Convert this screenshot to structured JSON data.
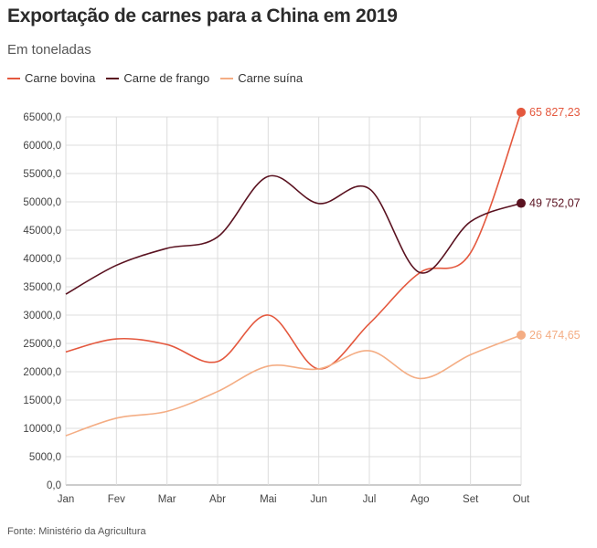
{
  "chart_data": {
    "type": "line",
    "title": "Exportação de carnes para a China em 2019",
    "subtitle": "Em toneladas",
    "source": "Fonte: Ministério da Agricultura",
    "categories": [
      "Jan",
      "Fev",
      "Mar",
      "Abr",
      "Mai",
      "Jun",
      "Jul",
      "Ago",
      "Set",
      "Out"
    ],
    "ylim": [
      0,
      65000
    ],
    "yticks": [
      "0,0",
      "5000,0",
      "10000,0",
      "15000,0",
      "20000,0",
      "25000,0",
      "30000,0",
      "35000,0",
      "40000,0",
      "45000,0",
      "50000,0",
      "55000,0",
      "60000,0",
      "65000,0"
    ],
    "grid": true,
    "legend_position": "top-left",
    "series": [
      {
        "name": "Carne bovina",
        "color": "#e4583e",
        "values": [
          23500,
          25800,
          24800,
          21800,
          30000,
          20500,
          28500,
          37500,
          41000,
          65827.23
        ],
        "end_label": "65 827,23"
      },
      {
        "name": "Carne de frango",
        "color": "#5a1220",
        "values": [
          33700,
          38800,
          41800,
          43800,
          54500,
          49700,
          52300,
          37500,
          46500,
          49752.07
        ],
        "end_label": "49 752,07"
      },
      {
        "name": "Carne suína",
        "color": "#f4ad84",
        "values": [
          8700,
          11800,
          13000,
          16500,
          21000,
          20500,
          23700,
          18800,
          23000,
          26474.65
        ],
        "end_label": "26 474,65"
      }
    ]
  }
}
